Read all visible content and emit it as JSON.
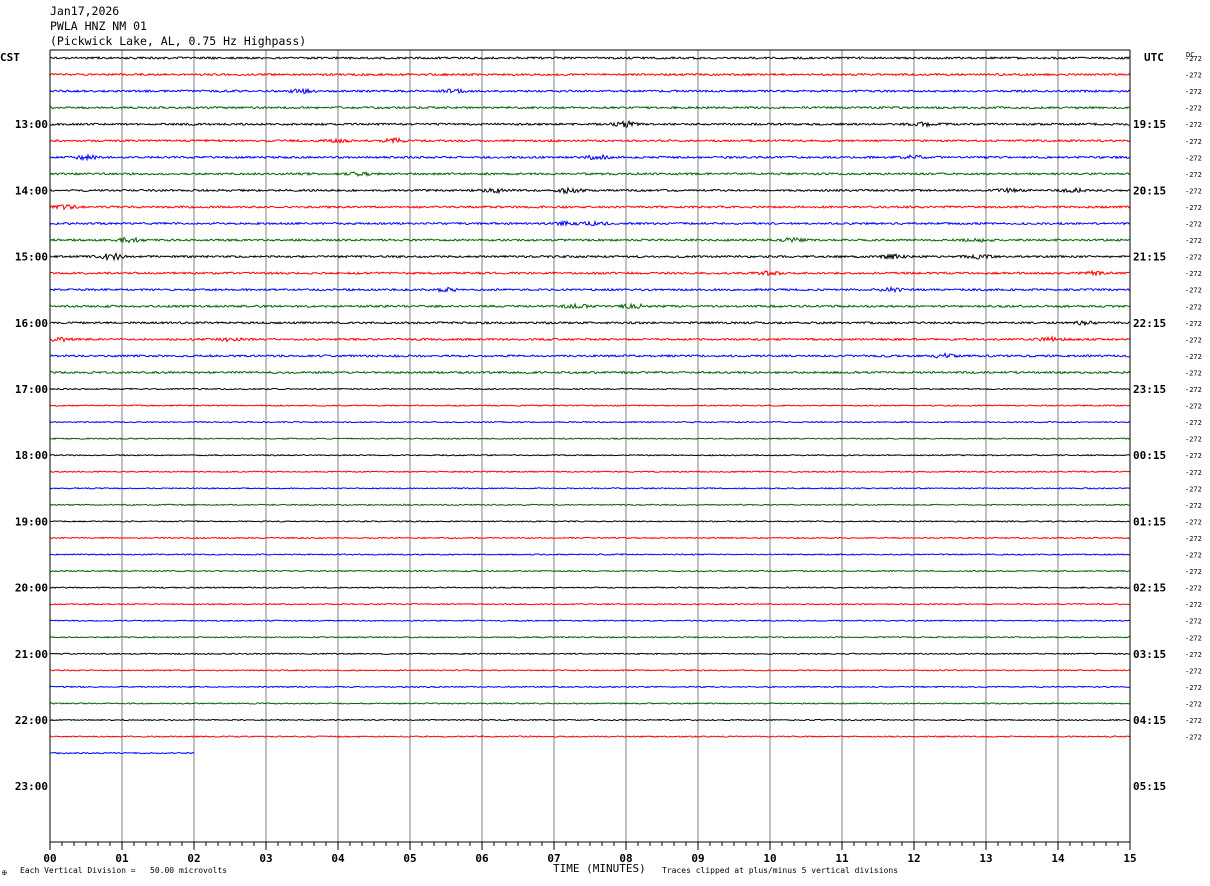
{
  "header": {
    "date": "Jan17,2026",
    "station": "PWLA HNZ NM 01",
    "location": "(Pickwick Lake, AL, 0.75 Hz Highpass)"
  },
  "left_tz": "CST",
  "right_tz": "UTC",
  "dc_label": "DC",
  "footer": {
    "scale_note": "Each Vertical Division =   50.00 microvolts",
    "xlabel": "TIME (MINUTES)",
    "clip_note": "Traces clipped at plus/minus 5 vertical divisions",
    "corner_mark": "✠"
  },
  "colors": {
    "trace_cycle": [
      "#000000",
      "#ff0000",
      "#0000ff",
      "#006400"
    ],
    "grid": "#808080"
  },
  "chart_data": {
    "type": "line",
    "title": "PWLA HNZ NM 01",
    "xlabel": "TIME (MINUTES)",
    "x_range": [
      0,
      15
    ],
    "x_ticks": [
      "00",
      "01",
      "02",
      "03",
      "04",
      "05",
      "06",
      "07",
      "08",
      "09",
      "10",
      "11",
      "12",
      "13",
      "14",
      "15"
    ],
    "left_time_labels": [
      "13:00",
      "14:00",
      "15:00",
      "16:00",
      "17:00",
      "18:00",
      "19:00",
      "20:00",
      "21:00",
      "22:00",
      "23:00"
    ],
    "right_time_labels": [
      "19:15",
      "20:15",
      "21:15",
      "22:15",
      "23:15",
      "00:15",
      "01:15",
      "02:15",
      "03:15",
      "04:15",
      "05:15"
    ],
    "trace_dc_offsets": [
      "-272",
      "-272",
      "-272",
      "-272",
      "-272",
      "-272",
      "-272",
      "-272",
      "-272",
      "-272",
      "-272",
      "-272",
      "-272",
      "-272",
      "-272",
      "-272",
      "-272",
      "-272",
      "-272",
      "-272",
      "-272",
      "-272",
      "-272",
      "-272",
      "-272",
      "-272",
      "-272",
      "-272",
      "-272",
      "-272",
      "-272",
      "-272",
      "-272",
      "-272",
      "-272",
      "-272",
      "-272",
      "-272",
      "-272",
      "-272",
      "-272",
      "-272"
    ],
    "traces_total": 43,
    "last_trace_minutes": 2,
    "traces_per_hour": 4,
    "clip_divisions": 5,
    "division_microvolts": 50.0,
    "events": [
      [
        2,
        3.5,
        1.5
      ],
      [
        2,
        5.6,
        1.2
      ],
      [
        4,
        8.0,
        2.2
      ],
      [
        4,
        12.1,
        1.6
      ],
      [
        5,
        4.0,
        1.3
      ],
      [
        5,
        4.8,
        1.6
      ],
      [
        6,
        0.5,
        1.6
      ],
      [
        6,
        7.6,
        1.8
      ],
      [
        6,
        12.0,
        1.4
      ],
      [
        7,
        4.3,
        1.3
      ],
      [
        8,
        6.2,
        1.6
      ],
      [
        8,
        7.2,
        2.2
      ],
      [
        8,
        13.3,
        1.3
      ],
      [
        8,
        14.2,
        1.4
      ],
      [
        9,
        0.2,
        1.4
      ],
      [
        10,
        7.2,
        1.6
      ],
      [
        10,
        7.6,
        1.6
      ],
      [
        11,
        1.1,
        2.0
      ],
      [
        11,
        10.3,
        1.5
      ],
      [
        11,
        12.9,
        1.3
      ],
      [
        12,
        0.85,
        2.8
      ],
      [
        12,
        11.7,
        1.6
      ],
      [
        12,
        12.9,
        1.6
      ],
      [
        13,
        10.0,
        1.3
      ],
      [
        13,
        14.5,
        1.6
      ],
      [
        14,
        5.5,
        1.6
      ],
      [
        14,
        11.7,
        1.3
      ],
      [
        15,
        7.3,
        1.6
      ],
      [
        15,
        8.1,
        1.8
      ],
      [
        16,
        14.4,
        1.6
      ],
      [
        17,
        0.1,
        1.6
      ],
      [
        17,
        2.5,
        1.8
      ],
      [
        17,
        13.9,
        1.6
      ],
      [
        18,
        12.4,
        1.5
      ]
    ]
  }
}
